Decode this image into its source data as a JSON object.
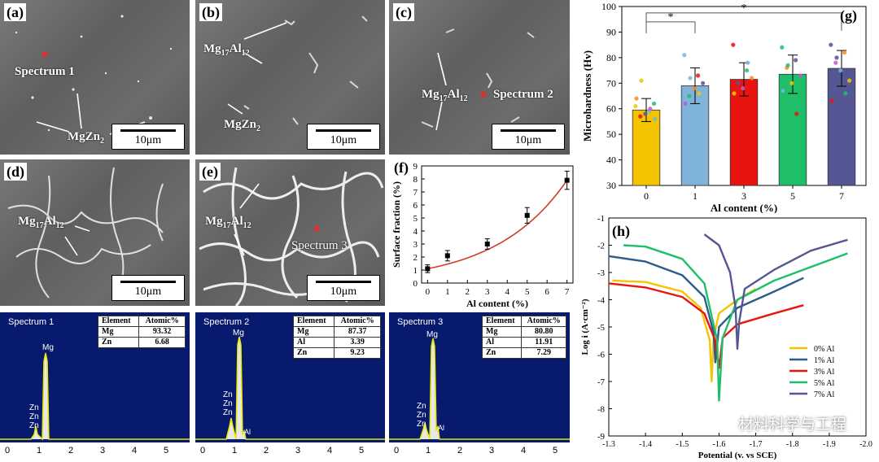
{
  "colors": {
    "spectrum_bg": "#081a6e",
    "peak": "#e8e800",
    "fit": "#d23a2a",
    "bar_0": "#f5c400",
    "bar_1": "#7fb3da",
    "bar_3": "#e8140f",
    "bar_5": "#1fbf6a",
    "bar_7": "#555694"
  },
  "sem_panels": [
    {
      "id": "a",
      "label": "(a)",
      "scale": "10μm",
      "annotations": [
        "Spectrum 1",
        "MgZn",
        "2"
      ]
    },
    {
      "id": "b",
      "label": "(b)",
      "scale": "10μm",
      "annotations": [
        "Mg",
        "17",
        "Al",
        "12",
        "MgZn",
        "2"
      ]
    },
    {
      "id": "c",
      "label": "(c)",
      "scale": "10μm",
      "annotations": [
        "Mg",
        "17",
        "Al",
        "12",
        "Spectrum 2"
      ]
    },
    {
      "id": "d",
      "label": "(d)",
      "scale": "10μm",
      "annotations": [
        "Mg",
        "17",
        "Al",
        "12"
      ]
    },
    {
      "id": "e",
      "label": "(e)",
      "scale": "10μm",
      "annotations": [
        "Mg",
        "17",
        "Al",
        "12",
        "Spectrum 3"
      ]
    }
  ],
  "spectra": [
    {
      "title": "Spectrum 1",
      "header": [
        "Element",
        "Atomic%"
      ],
      "rows": [
        [
          "Mg",
          "93.32"
        ],
        [
          "Zn",
          "6.68"
        ]
      ],
      "peak_labels": [
        "Mg",
        "Zn",
        "Zn",
        "Zn"
      ],
      "ticks": [
        "0",
        "1",
        "2",
        "3",
        "4",
        "5"
      ]
    },
    {
      "title": "Spectrum 2",
      "header": [
        "Element",
        "Atomic%"
      ],
      "rows": [
        [
          "Mg",
          "87.37"
        ],
        [
          "Al",
          "3.39"
        ],
        [
          "Zn",
          "9.23"
        ]
      ],
      "peak_labels": [
        "Mg",
        "Zn",
        "Zn",
        "Zn",
        "Al"
      ],
      "ticks": [
        "0",
        "1",
        "2",
        "3",
        "4",
        "5"
      ]
    },
    {
      "title": "Spectrum 3",
      "header": [
        "Element",
        "Atomic%"
      ],
      "rows": [
        [
          "Mg",
          "80.80"
        ],
        [
          "Al",
          "11.91"
        ],
        [
          "Zn",
          "7.29"
        ]
      ],
      "peak_labels": [
        "Mg",
        "Zn",
        "Zn",
        "Zn",
        "Al"
      ],
      "ticks": [
        "0",
        "1",
        "2",
        "3",
        "4",
        "5"
      ]
    }
  ],
  "chart_data": [
    {
      "type": "scatter",
      "panel": "(f)",
      "title": "",
      "xlabel": "Al content (%)",
      "ylabel": "Surface fraction (%)",
      "x": [
        0,
        1,
        3,
        5,
        7
      ],
      "y": [
        1.1,
        2.1,
        3.0,
        5.2,
        7.9
      ],
      "err": [
        0.3,
        0.4,
        0.4,
        0.6,
        0.7
      ],
      "xlim": [
        -0.3,
        7.3
      ],
      "ylim": [
        0,
        9
      ],
      "xticks": [
        "0",
        "1",
        "2",
        "3",
        "4",
        "5",
        "6",
        "7"
      ],
      "yticks": [
        "0",
        "1",
        "2",
        "3",
        "4",
        "5",
        "6",
        "7",
        "8",
        "9"
      ],
      "fit": "exponential"
    },
    {
      "type": "bar",
      "panel": "(g)",
      "xlabel": "Al content (%)",
      "ylabel": "Microhardness (Hv)",
      "categories": [
        "0",
        "1",
        "3",
        "5",
        "7"
      ],
      "values": [
        59.5,
        69,
        71.5,
        73.5,
        75.8
      ],
      "err": [
        4.5,
        7,
        6.5,
        7.5,
        7
      ],
      "ylim": [
        30,
        100
      ],
      "yticks": [
        "30",
        "40",
        "50",
        "60",
        "70",
        "80",
        "90",
        "100"
      ],
      "significance": [
        "*",
        "*"
      ],
      "points": [
        [
          61,
          59,
          57,
          62,
          58,
          64,
          60,
          71,
          56
        ],
        [
          81,
          73,
          65,
          70,
          68,
          62,
          66,
          72
        ],
        [
          85,
          75,
          70,
          72,
          68,
          66,
          78,
          63
        ],
        [
          84,
          79,
          76,
          73,
          70,
          67,
          58,
          77
        ],
        [
          85,
          82,
          78,
          71,
          75,
          63,
          66,
          80
        ]
      ]
    },
    {
      "type": "line",
      "panel": "(h)",
      "xlabel": "Potential (v. vs SCE)",
      "ylabel": "Log i (A·cm⁻²)",
      "xlim": [
        -1.3,
        -2.0
      ],
      "ylim": [
        -9,
        -1
      ],
      "xticks": [
        "-1.3",
        "-1.4",
        "-1.5",
        "-1.6",
        "-1.7",
        "-1.8",
        "-1.9",
        "-2.0"
      ],
      "yticks": [
        "-1",
        "-2",
        "-3",
        "-4",
        "-5",
        "-6",
        "-7",
        "-8",
        "-9"
      ],
      "series": [
        {
          "name": "0% Al",
          "color": "#f5c400",
          "corr_potential": -1.58,
          "x": [
            -1.31,
            -1.4,
            -1.5,
            -1.55,
            -1.575,
            -1.58,
            -1.585,
            -1.6,
            -1.65,
            -1.7
          ],
          "y": [
            -3.3,
            -3.35,
            -3.7,
            -4.3,
            -5.5,
            -7.0,
            -5.4,
            -4.5,
            -4.0,
            -3.6
          ]
        },
        {
          "name": "1% Al",
          "color": "#2a5d8c",
          "corr_potential": -1.59,
          "x": [
            -1.3,
            -1.4,
            -1.5,
            -1.56,
            -1.585,
            -1.59,
            -1.6,
            -1.65,
            -1.75,
            -1.83
          ],
          "y": [
            -2.4,
            -2.6,
            -3.1,
            -3.9,
            -5.2,
            -6.3,
            -5.0,
            -4.3,
            -3.7,
            -3.2
          ]
        },
        {
          "name": "3% Al",
          "color": "#e8140f",
          "corr_potential": -1.6,
          "x": [
            -1.3,
            -1.4,
            -1.5,
            -1.56,
            -1.59,
            -1.6,
            -1.61,
            -1.65,
            -1.75,
            -1.83
          ],
          "y": [
            -3.4,
            -3.55,
            -3.9,
            -4.5,
            -5.5,
            -6.5,
            -5.4,
            -4.9,
            -4.5,
            -4.2
          ]
        },
        {
          "name": "5% Al",
          "color": "#1fbf6a",
          "corr_potential": -1.6,
          "x": [
            -1.34,
            -1.4,
            -1.5,
            -1.56,
            -1.595,
            -1.6,
            -1.61,
            -1.65,
            -1.75,
            -1.95
          ],
          "y": [
            -2.0,
            -2.05,
            -2.5,
            -3.4,
            -5.5,
            -7.7,
            -5.4,
            -4.0,
            -3.3,
            -2.3
          ]
        },
        {
          "name": "7% Al",
          "color": "#555694",
          "corr_potential": -1.65,
          "x": [
            -1.56,
            -1.6,
            -1.63,
            -1.645,
            -1.65,
            -1.655,
            -1.67,
            -1.75,
            -1.85,
            -1.95
          ],
          "y": [
            -1.6,
            -2.0,
            -3.0,
            -4.3,
            -5.8,
            -4.8,
            -3.6,
            -2.9,
            -2.2,
            -1.8
          ]
        }
      ]
    }
  ],
  "panel_labels": {
    "f": "(f)",
    "g": "(g)",
    "h": "(h)"
  },
  "watermark": "材料科学与工程"
}
